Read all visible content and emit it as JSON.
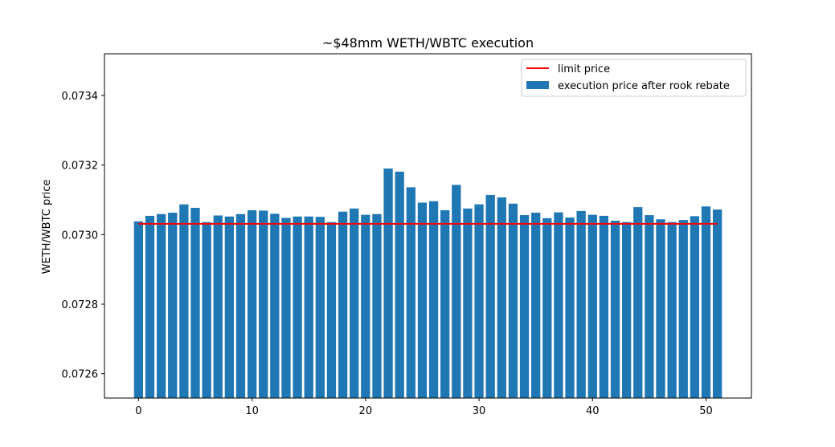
{
  "chart_data": {
    "type": "bar",
    "title": "~$48mm WETH/WBTC execution",
    "xlabel": "",
    "ylabel": "WETH/WBTC price",
    "xlim": [
      -3,
      54
    ],
    "ylim": [
      0.07253,
      0.07352
    ],
    "xticks": [
      0,
      10,
      20,
      30,
      40,
      50
    ],
    "xtick_labels": [
      "0",
      "10",
      "20",
      "30",
      "40",
      "50"
    ],
    "yticks": [
      0.0726,
      0.0728,
      0.073,
      0.0732,
      0.0734
    ],
    "ytick_labels": [
      "0.0726",
      "0.0728",
      "0.0730",
      "0.0732",
      "0.0734"
    ],
    "grid": false,
    "legend_position": "upper right",
    "series": [
      {
        "name": "execution price after rook rebate",
        "kind": "bar",
        "color": "#1f77b4",
        "x": [
          0,
          1,
          2,
          3,
          4,
          5,
          6,
          7,
          8,
          9,
          10,
          11,
          12,
          13,
          14,
          15,
          16,
          17,
          18,
          19,
          20,
          21,
          22,
          23,
          24,
          25,
          26,
          27,
          28,
          29,
          30,
          31,
          32,
          33,
          34,
          35,
          36,
          37,
          38,
          39,
          40,
          41,
          42,
          43,
          44,
          45,
          46,
          47,
          48,
          49,
          50,
          51
        ],
        "values": [
          0.073038,
          0.073054,
          0.073059,
          0.073063,
          0.073087,
          0.073077,
          0.073036,
          0.073055,
          0.073052,
          0.073059,
          0.07307,
          0.073069,
          0.07306,
          0.073048,
          0.073052,
          0.073052,
          0.073051,
          0.073036,
          0.073066,
          0.073075,
          0.073057,
          0.073059,
          0.07319,
          0.073181,
          0.073136,
          0.073092,
          0.073096,
          0.07307,
          0.073143,
          0.073075,
          0.073087,
          0.073114,
          0.073107,
          0.073089,
          0.073056,
          0.073063,
          0.073047,
          0.073064,
          0.073049,
          0.073068,
          0.073057,
          0.073054,
          0.07304,
          0.073036,
          0.073079,
          0.073056,
          0.073044,
          0.073036,
          0.073042,
          0.073053,
          0.073081,
          0.073072
        ]
      },
      {
        "name": "limit price",
        "kind": "line",
        "color": "#ff0000",
        "x": [
          0,
          51
        ],
        "values": [
          0.073031,
          0.073031
        ]
      }
    ]
  }
}
